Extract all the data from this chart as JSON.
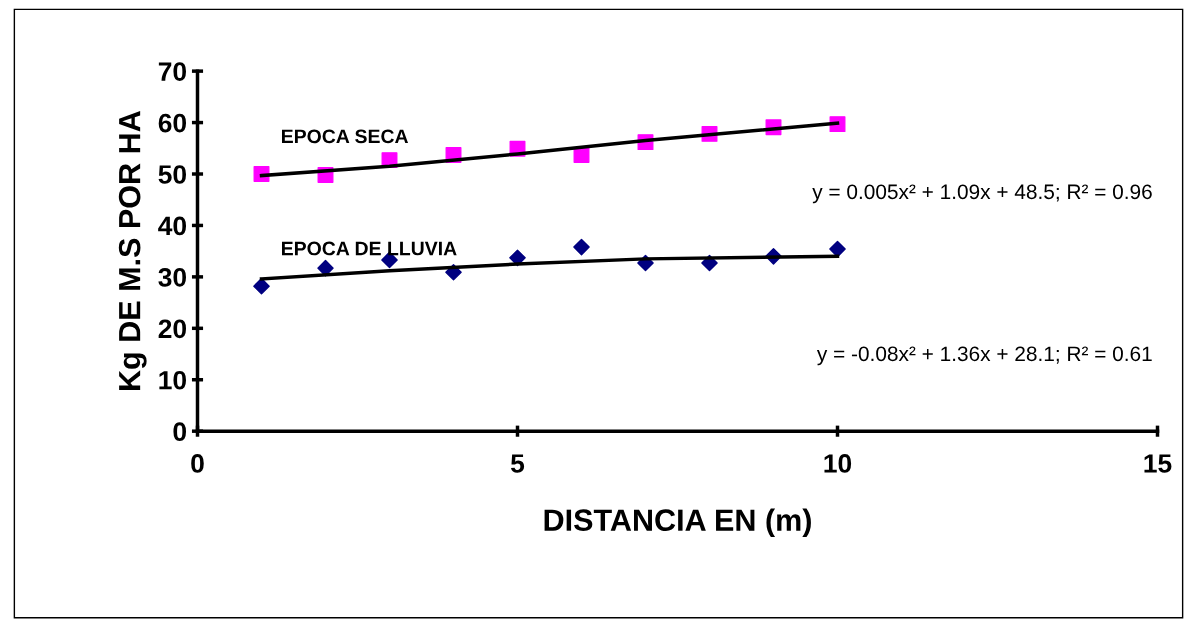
{
  "chart_data": {
    "type": "scatter",
    "xlabel": "DISTANCIA EN (m)",
    "ylabel": "Kg DE M.S POR HA",
    "x": [
      1,
      2,
      3,
      4,
      5,
      6,
      7,
      8,
      9,
      10
    ],
    "series": [
      {
        "name": "EPOCA SECA",
        "color": "#ff00ff",
        "marker": "square",
        "values": [
          50.0,
          49.8,
          52.7,
          53.7,
          54.9,
          53.7,
          56.2,
          57.8,
          59.1,
          59.7
        ]
      },
      {
        "name": "EPOCA DE LLUVIA",
        "color": "#000080",
        "marker": "diamond",
        "values": [
          28.2,
          31.7,
          33.3,
          30.9,
          33.7,
          35.8,
          32.7,
          32.7,
          34.0,
          35.4
        ]
      },
      {
        "type": "line",
        "color": "#000000",
        "x": [
          1,
          3,
          5,
          7,
          10
        ],
        "values": [
          49.7,
          51.5,
          53.9,
          56.5,
          59.9
        ]
      },
      {
        "type": "line",
        "color": "#000000",
        "x": [
          1,
          3,
          5,
          7,
          10
        ],
        "values": [
          29.6,
          31.2,
          32.5,
          33.5,
          34.0
        ]
      }
    ],
    "annotations": [
      "y = 0.005x² + 1.09x + 48.5; R² = 0.96",
      "y = -0.08x² + 1.36x + 28.1; R² = 0.61"
    ],
    "xlim": [
      0,
      15
    ],
    "xticks": [
      0,
      5,
      10,
      15
    ],
    "ylim": [
      0,
      70
    ],
    "yticks": [
      0,
      10,
      20,
      30,
      40,
      50,
      60,
      70
    ],
    "grid": false,
    "legend": false
  }
}
